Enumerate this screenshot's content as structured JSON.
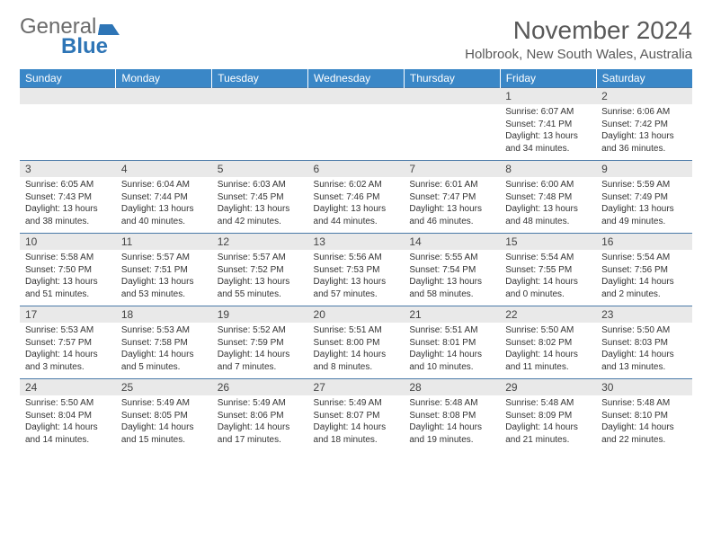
{
  "logo": {
    "text1": "General",
    "text2": "Blue"
  },
  "title": "November 2024",
  "location": "Holbrook, New South Wales, Australia",
  "colors": {
    "header_bg": "#3a87c7",
    "daynum_bg": "#e9e9e9",
    "rule": "#4a7aa8",
    "text": "#333333",
    "title_color": "#595959"
  },
  "dayNames": [
    "Sunday",
    "Monday",
    "Tuesday",
    "Wednesday",
    "Thursday",
    "Friday",
    "Saturday"
  ],
  "weeks": [
    {
      "nums": [
        "",
        "",
        "",
        "",
        "",
        "1",
        "2"
      ],
      "cells": [
        "",
        "",
        "",
        "",
        "",
        "Sunrise: 6:07 AM\nSunset: 7:41 PM\nDaylight: 13 hours and 34 minutes.",
        "Sunrise: 6:06 AM\nSunset: 7:42 PM\nDaylight: 13 hours and 36 minutes."
      ]
    },
    {
      "nums": [
        "3",
        "4",
        "5",
        "6",
        "7",
        "8",
        "9"
      ],
      "cells": [
        "Sunrise: 6:05 AM\nSunset: 7:43 PM\nDaylight: 13 hours and 38 minutes.",
        "Sunrise: 6:04 AM\nSunset: 7:44 PM\nDaylight: 13 hours and 40 minutes.",
        "Sunrise: 6:03 AM\nSunset: 7:45 PM\nDaylight: 13 hours and 42 minutes.",
        "Sunrise: 6:02 AM\nSunset: 7:46 PM\nDaylight: 13 hours and 44 minutes.",
        "Sunrise: 6:01 AM\nSunset: 7:47 PM\nDaylight: 13 hours and 46 minutes.",
        "Sunrise: 6:00 AM\nSunset: 7:48 PM\nDaylight: 13 hours and 48 minutes.",
        "Sunrise: 5:59 AM\nSunset: 7:49 PM\nDaylight: 13 hours and 49 minutes."
      ]
    },
    {
      "nums": [
        "10",
        "11",
        "12",
        "13",
        "14",
        "15",
        "16"
      ],
      "cells": [
        "Sunrise: 5:58 AM\nSunset: 7:50 PM\nDaylight: 13 hours and 51 minutes.",
        "Sunrise: 5:57 AM\nSunset: 7:51 PM\nDaylight: 13 hours and 53 minutes.",
        "Sunrise: 5:57 AM\nSunset: 7:52 PM\nDaylight: 13 hours and 55 minutes.",
        "Sunrise: 5:56 AM\nSunset: 7:53 PM\nDaylight: 13 hours and 57 minutes.",
        "Sunrise: 5:55 AM\nSunset: 7:54 PM\nDaylight: 13 hours and 58 minutes.",
        "Sunrise: 5:54 AM\nSunset: 7:55 PM\nDaylight: 14 hours and 0 minutes.",
        "Sunrise: 5:54 AM\nSunset: 7:56 PM\nDaylight: 14 hours and 2 minutes."
      ]
    },
    {
      "nums": [
        "17",
        "18",
        "19",
        "20",
        "21",
        "22",
        "23"
      ],
      "cells": [
        "Sunrise: 5:53 AM\nSunset: 7:57 PM\nDaylight: 14 hours and 3 minutes.",
        "Sunrise: 5:53 AM\nSunset: 7:58 PM\nDaylight: 14 hours and 5 minutes.",
        "Sunrise: 5:52 AM\nSunset: 7:59 PM\nDaylight: 14 hours and 7 minutes.",
        "Sunrise: 5:51 AM\nSunset: 8:00 PM\nDaylight: 14 hours and 8 minutes.",
        "Sunrise: 5:51 AM\nSunset: 8:01 PM\nDaylight: 14 hours and 10 minutes.",
        "Sunrise: 5:50 AM\nSunset: 8:02 PM\nDaylight: 14 hours and 11 minutes.",
        "Sunrise: 5:50 AM\nSunset: 8:03 PM\nDaylight: 14 hours and 13 minutes."
      ]
    },
    {
      "nums": [
        "24",
        "25",
        "26",
        "27",
        "28",
        "29",
        "30"
      ],
      "cells": [
        "Sunrise: 5:50 AM\nSunset: 8:04 PM\nDaylight: 14 hours and 14 minutes.",
        "Sunrise: 5:49 AM\nSunset: 8:05 PM\nDaylight: 14 hours and 15 minutes.",
        "Sunrise: 5:49 AM\nSunset: 8:06 PM\nDaylight: 14 hours and 17 minutes.",
        "Sunrise: 5:49 AM\nSunset: 8:07 PM\nDaylight: 14 hours and 18 minutes.",
        "Sunrise: 5:48 AM\nSunset: 8:08 PM\nDaylight: 14 hours and 19 minutes.",
        "Sunrise: 5:48 AM\nSunset: 8:09 PM\nDaylight: 14 hours and 21 minutes.",
        "Sunrise: 5:48 AM\nSunset: 8:10 PM\nDaylight: 14 hours and 22 minutes."
      ]
    }
  ]
}
